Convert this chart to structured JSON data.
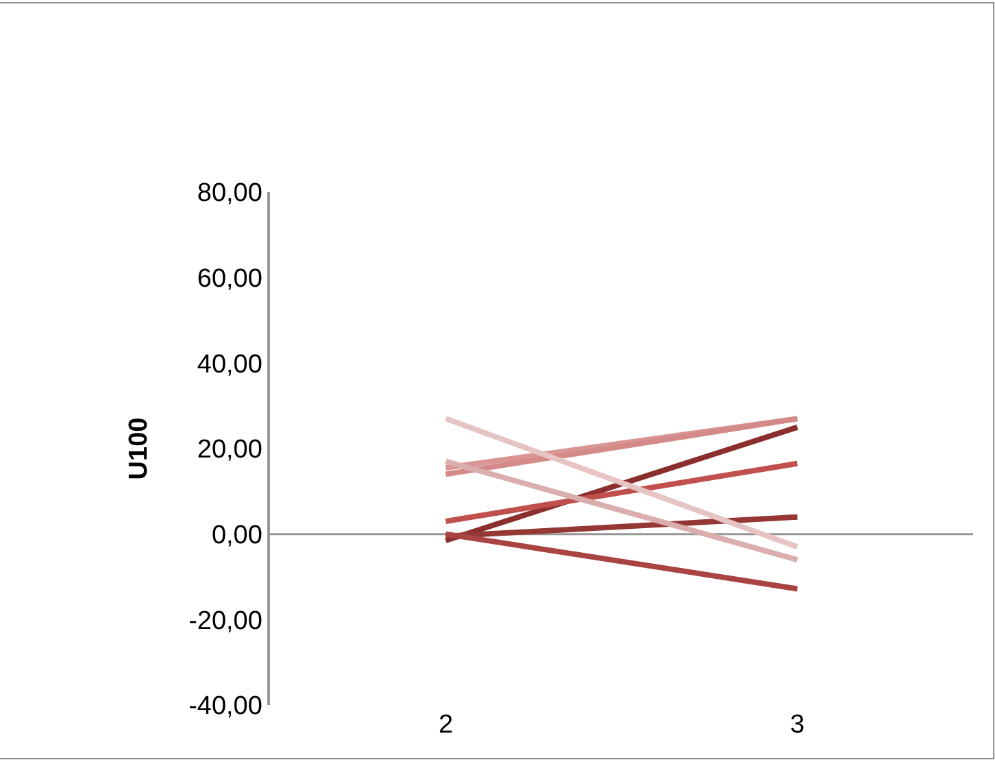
{
  "chart_data": {
    "type": "line",
    "ylabel": "U100",
    "categories": [
      "2",
      "3"
    ],
    "ylim": [
      -40,
      80
    ],
    "yticks": [
      {
        "value": -40,
        "label": "-40,00"
      },
      {
        "value": -20,
        "label": "-20,00"
      },
      {
        "value": 0,
        "label": "0,00"
      },
      {
        "value": 20,
        "label": "20,00"
      },
      {
        "value": 40,
        "label": "40,00"
      },
      {
        "value": 60,
        "label": "60,00"
      },
      {
        "value": 80,
        "label": "80,00"
      }
    ],
    "marker": "none",
    "line_style": "solid",
    "series": [
      {
        "color": "#8b2e2e",
        "values": [
          -1.5,
          25
        ]
      },
      {
        "color": "#d99594",
        "values": [
          15.5,
          27
        ]
      },
      {
        "color": "#d48a88",
        "values": [
          14,
          27
        ]
      },
      {
        "color": "#c0504d",
        "values": [
          3,
          16.5
        ]
      },
      {
        "color": "#953735",
        "values": [
          -0.5,
          4
        ]
      },
      {
        "color": "#a94442",
        "values": [
          0,
          -12.8
        ]
      },
      {
        "color": "#e6c4c4",
        "values": [
          27,
          -3
        ]
      },
      {
        "color": "#dbaeae",
        "values": [
          17,
          -6
        ]
      }
    ]
  }
}
